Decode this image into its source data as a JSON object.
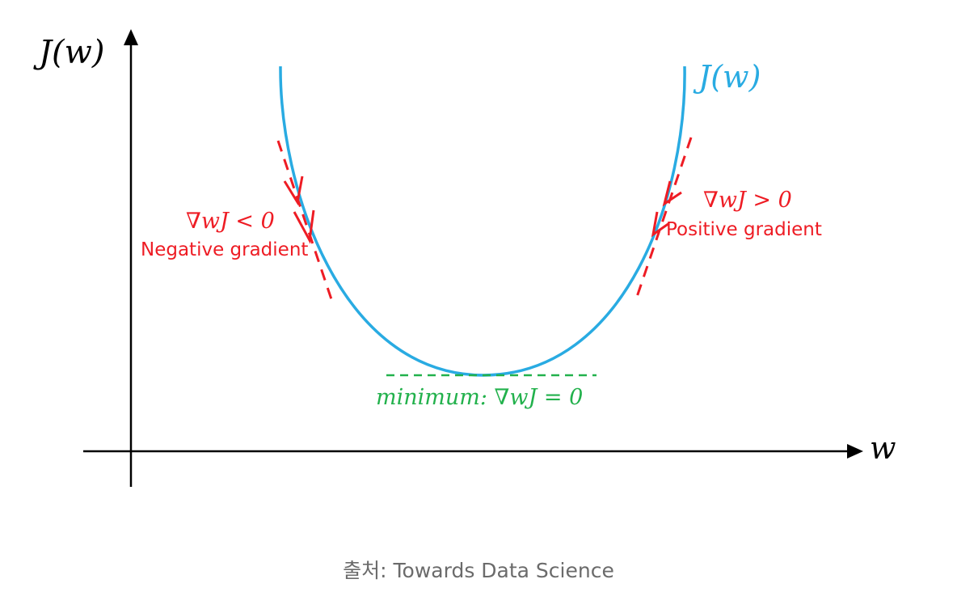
{
  "axes": {
    "y_label": "J(w)",
    "x_label": "w"
  },
  "curve": {
    "label": "J(w)",
    "color": "#29abe2"
  },
  "annotations": {
    "negative": {
      "formula": "∇wJ < 0",
      "text": "Negative gradient",
      "color": "#ee1c24"
    },
    "positive": {
      "formula": "∇wJ > 0",
      "text": "Positive gradient",
      "color": "#ee1c24"
    },
    "minimum": {
      "prefix": "minimum",
      "formula": ": ∇wJ = 0",
      "color": "#22b14c"
    }
  },
  "caption": "출처: Towards Data Science"
}
